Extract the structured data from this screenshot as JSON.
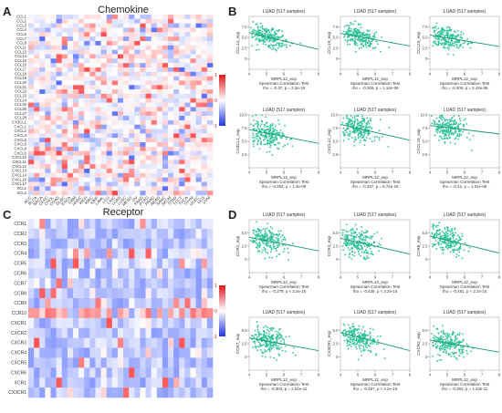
{
  "panels": {
    "A": {
      "letter": "A",
      "title": "Chemokine",
      "row_labels": [
        "CCL1",
        "CCL2",
        "CCL3",
        "CCL4",
        "CCL5",
        "CCL7",
        "CCL8",
        "CCL11",
        "CCL13",
        "CCL14",
        "CCL15",
        "CCL16",
        "CCL17",
        "CCL18",
        "CCL19",
        "CCL20",
        "CCL21",
        "CCL22",
        "CCL23",
        "CCL24",
        "CCL25",
        "CCL26",
        "CCL27",
        "CCL28",
        "CX3CL1",
        "CXCL1",
        "CXCL2",
        "CXCL3",
        "CXCL5",
        "CXCL6",
        "CXCL8",
        "CXCL9",
        "CXCL10",
        "CXCL11",
        "CXCL12",
        "CXCL13",
        "CXCL14",
        "CXCL16",
        "CXCL17",
        "XCL1",
        "XCL2"
      ],
      "col_labels": [
        "ACC",
        "BLCA",
        "BRCA",
        "CESC",
        "CHOL",
        "COAD",
        "DLBC",
        "ESCA",
        "GBM",
        "HNSC",
        "KICH",
        "KIRC",
        "KIRP",
        "LAML",
        "LGG",
        "LIHC",
        "LUAD",
        "LUSC",
        "MESO",
        "OV",
        "PAAD",
        "PCPG",
        "PRAD",
        "READ",
        "SARC",
        "SKCM",
        "STAD",
        "TGCT",
        "THCA",
        "THYM",
        "UCEC",
        "UCS",
        "UVM"
      ],
      "legend": {
        "ticks": [
          "1",
          "0",
          "-1"
        ],
        "max": 1,
        "min": -1
      }
    },
    "C": {
      "letter": "C",
      "title": "Receptor",
      "row_labels": [
        "CCR1",
        "CCR2",
        "CCR3",
        "CCR4",
        "CCR5",
        "CCR6",
        "CCR7",
        "CCR8",
        "CCR9",
        "CCR10",
        "CXCR1",
        "CXCR2",
        "CXCR3",
        "CXCR4",
        "CXCR5",
        "CXCR6",
        "XCR1",
        "CX3CR1"
      ],
      "legend": {
        "ticks": [
          "1",
          "0",
          "-1"
        ],
        "max": 1,
        "min": -1
      }
    },
    "B": {
      "letter": "B"
    },
    "D": {
      "letter": "D"
    }
  },
  "colors": {
    "positive": "#d7191c",
    "negative": "#2c4bd6",
    "neutral": "#ffffff",
    "point": "#2fc39a",
    "line": "#1e9a6a"
  },
  "chart_data": [
    {
      "type": "heatmap",
      "panel": "A",
      "title": "Chemokine",
      "value_range": [
        -1,
        1
      ]
    },
    {
      "type": "heatmap",
      "panel": "C",
      "title": "Receptor",
      "value_range": [
        -1,
        1
      ]
    },
    {
      "type": "scatter",
      "panel": "B",
      "title": "LUAD (517 samples)",
      "xlabel": "MRPL12_exp",
      "ylabel": "CCL14_exp",
      "stat_title": "Spearman Correlation Test",
      "stat": "rho = -0.37, p = 2.2e-16",
      "xlim": [
        4,
        8
      ],
      "ylim": [
        -2.5,
        10
      ],
      "xticks": [
        "4",
        "5",
        "6",
        "7",
        "8"
      ],
      "yticks": [
        "0",
        "2.5",
        "5.0",
        "7.5"
      ],
      "trend": {
        "x": [
          4,
          8
        ],
        "y": [
          6.2,
          2.2
        ]
      }
    },
    {
      "type": "scatter",
      "panel": "B",
      "title": "LUAD (517 samples)",
      "xlabel": "MRPL12_exp",
      "ylabel": "CCL19_exp",
      "stat_title": "Spearman Correlation Test",
      "stat": "rho = -0.265, p = 1.14e-09",
      "xlim": [
        4,
        8
      ],
      "ylim": [
        -2.5,
        10
      ],
      "xticks": [
        "4",
        "5",
        "6",
        "7",
        "8"
      ],
      "yticks": [
        "0",
        "2.5",
        "5.0",
        "7.5"
      ],
      "trend": {
        "x": [
          4,
          8
        ],
        "y": [
          6.0,
          3.0
        ]
      }
    },
    {
      "type": "scatter",
      "panel": "B",
      "title": "LUAD (517 samples)",
      "xlabel": "MRPL12_exp",
      "ylabel": "CCL23_exp",
      "stat_title": "Spearman Correlation Test",
      "stat": "rho = -0.206, p = 2.42e-06",
      "xlim": [
        4,
        8
      ],
      "ylim": [
        -2.5,
        10
      ],
      "xticks": [
        "4",
        "5",
        "6",
        "7",
        "8"
      ],
      "yticks": [
        "0",
        "2.5",
        "5.0",
        "7.5"
      ],
      "trend": {
        "x": [
          4,
          8
        ],
        "y": [
          5.6,
          2.9
        ]
      }
    },
    {
      "type": "scatter",
      "panel": "B",
      "title": "LUAD (517 samples)",
      "xlabel": "MRPL12_exp",
      "ylabel": "CX3CL1_exp",
      "stat_title": "Spearman Correlation Test",
      "stat": "rho = -0.263, p = 1.4e-09",
      "xlim": [
        4,
        8
      ],
      "ylim": [
        0,
        10
      ],
      "xticks": [
        "4",
        "5",
        "6",
        "7",
        "8"
      ],
      "yticks": [
        "2.5",
        "5.0",
        "7.5",
        "10.0"
      ],
      "trend": {
        "x": [
          4,
          8
        ],
        "y": [
          7.2,
          4.6
        ]
      }
    },
    {
      "type": "scatter",
      "panel": "B",
      "title": "LUAD (517 samples)",
      "xlabel": "MRPL12_exp",
      "ylabel": "CXCL12_exp",
      "stat_title": "Spearman Correlation Test",
      "stat": "rho = -0.347, p = 5.74e-16",
      "xlim": [
        4,
        8
      ],
      "ylim": [
        0,
        10
      ],
      "xticks": [
        "4",
        "5",
        "6",
        "7",
        "8"
      ],
      "yticks": [
        "2.5",
        "5.0",
        "7.5",
        "10.0"
      ],
      "trend": {
        "x": [
          4,
          8
        ],
        "y": [
          8.2,
          5.2
        ]
      }
    },
    {
      "type": "scatter",
      "panel": "B",
      "title": "LUAD (517 samples)",
      "xlabel": "MRPL12_exp",
      "ylabel": "CXCL16_exp",
      "stat_title": "Spearman Correlation Test",
      "stat": "rho = -0.21, p = 1.51e-06",
      "xlim": [
        4,
        8
      ],
      "ylim": [
        0,
        10
      ],
      "xticks": [
        "4",
        "5",
        "6",
        "7",
        "8"
      ],
      "yticks": [
        "2.5",
        "5.0",
        "7.5",
        "10.0"
      ],
      "trend": {
        "x": [
          4,
          8
        ],
        "y": [
          8.0,
          6.4
        ]
      }
    },
    {
      "type": "scatter",
      "panel": "D",
      "title": "LUAD (517 samples)",
      "xlabel": "MRPL12_exp",
      "ylabel": "CCR2_exp",
      "stat_title": "Spearman Correlation Test",
      "stat": "rho = -0.379, p < 2.2e-16",
      "xlim": [
        4,
        8
      ],
      "ylim": [
        -2.5,
        7.5
      ],
      "xticks": [
        "4",
        "5",
        "6",
        "7",
        "8"
      ],
      "yticks": [
        "0",
        "2.5",
        "5.0"
      ],
      "trend": {
        "x": [
          4,
          8
        ],
        "y": [
          4.2,
          1.6
        ]
      }
    },
    {
      "type": "scatter",
      "panel": "D",
      "title": "LUAD (517 samples)",
      "xlabel": "MRPL12_exp",
      "ylabel": "CCR4_exp",
      "stat_title": "Spearman Correlation Test",
      "stat": "rho = -0.439, p < 2.2e-16",
      "xlim": [
        4,
        8
      ],
      "ylim": [
        -2.5,
        7.5
      ],
      "xticks": [
        "4",
        "5",
        "6",
        "7",
        "8"
      ],
      "yticks": [
        "0",
        "2.5",
        "5.0"
      ],
      "trend": {
        "x": [
          4,
          8
        ],
        "y": [
          4.0,
          1.0
        ]
      }
    },
    {
      "type": "scatter",
      "panel": "D",
      "title": "LUAD (517 samples)",
      "xlabel": "MRPL12_exp",
      "ylabel": "CCR6_exp",
      "stat_title": "Spearman Correlation Test",
      "stat": "rho = -0.481, p < 2.2e-16",
      "xlim": [
        4,
        8
      ],
      "ylim": [
        -2.5,
        7.5
      ],
      "xticks": [
        "4",
        "5",
        "6",
        "7",
        "8"
      ],
      "yticks": [
        "0",
        "2.5",
        "5.0"
      ],
      "trend": {
        "x": [
          4,
          8
        ],
        "y": [
          4.4,
          1.2
        ]
      }
    },
    {
      "type": "scatter",
      "panel": "D",
      "title": "LUAD (517 samples)",
      "xlabel": "MRPL12_exp",
      "ylabel": "CCR7_exp",
      "stat_title": "Spearman Correlation Test",
      "stat": "rho = -0.303, p = 2.51e-12",
      "xlim": [
        4,
        8
      ],
      "ylim": [
        -2.5,
        7.5
      ],
      "xticks": [
        "4",
        "5",
        "6",
        "7",
        "8"
      ],
      "yticks": [
        "0",
        "2.5",
        "5.0"
      ],
      "trend": {
        "x": [
          4,
          8
        ],
        "y": [
          3.6,
          1.2
        ]
      }
    },
    {
      "type": "scatter",
      "panel": "D",
      "title": "LUAD (517 samples)",
      "xlabel": "MRPL12_exp",
      "ylabel": "CX3CR1_exp",
      "stat_title": "Spearman Correlation Test",
      "stat": "rho = -0.457, p < 2.2e-16",
      "xlim": [
        4,
        8
      ],
      "ylim": [
        -2.5,
        7.5
      ],
      "xticks": [
        "4",
        "5",
        "6",
        "7",
        "8"
      ],
      "yticks": [
        "0",
        "2.5",
        "5.0"
      ],
      "trend": {
        "x": [
          4,
          8
        ],
        "y": [
          4.6,
          1.2
        ]
      }
    },
    {
      "type": "scatter",
      "panel": "D",
      "title": "LUAD (517 samples)",
      "xlabel": "MRPL12_exp",
      "ylabel": "CXCR2_exp",
      "stat_title": "Spearman Correlation Test",
      "stat": "rho = -0.293, p = 1.43e-11",
      "xlim": [
        4,
        8
      ],
      "ylim": [
        -2.5,
        7.5
      ],
      "xticks": [
        "4",
        "5",
        "6",
        "7",
        "8"
      ],
      "yticks": [
        "0",
        "2.5",
        "5.0"
      ],
      "trend": {
        "x": [
          4,
          8
        ],
        "y": [
          3.2,
          0.9
        ]
      }
    }
  ]
}
